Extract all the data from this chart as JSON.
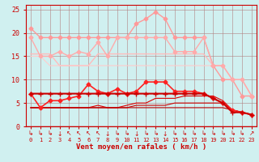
{
  "title": "",
  "xlabel": "Vent moyen/en rafales ( km/h )",
  "ylabel": "",
  "xlim": [
    -0.5,
    23.5
  ],
  "ylim": [
    0,
    26
  ],
  "yticks": [
    0,
    5,
    10,
    15,
    20,
    25
  ],
  "xticks": [
    0,
    1,
    2,
    3,
    4,
    5,
    6,
    7,
    8,
    9,
    10,
    11,
    12,
    13,
    14,
    15,
    16,
    17,
    18,
    19,
    20,
    21,
    22,
    23
  ],
  "bg_color": "#d0f0f0",
  "grid_color": "#b08080",
  "lines": [
    {
      "y": [
        21,
        19,
        19,
        19,
        19,
        19,
        19,
        19,
        19,
        19,
        19,
        22,
        23,
        24.5,
        23,
        19,
        19,
        19,
        19,
        13,
        10,
        10,
        6.5,
        6.5
      ],
      "color": "#ff9999",
      "marker": "D",
      "markersize": 2.5,
      "linewidth": 1.0,
      "zorder": 3
    },
    {
      "y": [
        19,
        15,
        15,
        16,
        15,
        16,
        15.5,
        18,
        15,
        19,
        19,
        19,
        19,
        19,
        19,
        16,
        16,
        16,
        19,
        13,
        13,
        10,
        10,
        6.5
      ],
      "color": "#ffaaaa",
      "marker": "D",
      "markersize": 2.5,
      "linewidth": 1.0,
      "zorder": 3
    },
    {
      "y": [
        15.5,
        15.5,
        15.5,
        13,
        13,
        13,
        13,
        15.5,
        15.5,
        15.5,
        15.5,
        15.5,
        15.5,
        15.5,
        15.5,
        15.5,
        15.5,
        15.5,
        15.5,
        13,
        13,
        10,
        10,
        6.5
      ],
      "color": "#ffbbbb",
      "marker": null,
      "markersize": 0,
      "linewidth": 1.0,
      "zorder": 2
    },
    {
      "y": [
        15,
        15,
        13,
        13,
        13,
        13,
        13,
        13,
        13,
        13,
        13,
        13,
        13,
        13,
        13,
        13,
        13,
        13,
        13,
        13,
        13,
        10,
        10,
        6.5
      ],
      "color": "#ffcccc",
      "marker": null,
      "markersize": 0,
      "linewidth": 0.8,
      "zorder": 2
    },
    {
      "y": [
        7,
        7,
        7,
        7,
        7,
        7,
        7,
        7,
        7,
        7,
        7,
        7,
        7,
        7,
        7,
        7,
        7,
        7,
        7,
        6,
        5,
        3,
        3,
        2.5
      ],
      "color": "#cc0000",
      "marker": "+",
      "markersize": 4,
      "linewidth": 1.5,
      "zorder": 5
    },
    {
      "y": [
        7,
        4,
        5.5,
        5.5,
        6,
        6.5,
        9,
        7.5,
        7,
        8,
        7,
        7.5,
        9.5,
        9.5,
        9.5,
        7.5,
        7.5,
        7.5,
        7,
        6,
        5,
        3.5,
        3,
        2.5
      ],
      "color": "#ff2222",
      "marker": "D",
      "markersize": 2.5,
      "linewidth": 1.2,
      "zorder": 4
    },
    {
      "y": [
        4,
        4,
        4,
        4,
        4,
        4,
        4,
        4.5,
        4,
        4,
        4.5,
        5,
        5,
        6,
        6,
        6,
        6.5,
        6.5,
        6.5,
        6.5,
        5.5,
        3.5,
        3,
        2.5
      ],
      "color": "#dd0000",
      "marker": null,
      "markersize": 0,
      "linewidth": 0.8,
      "zorder": 3
    },
    {
      "y": [
        4,
        4,
        4,
        4,
        4,
        4,
        4,
        4,
        4,
        4,
        4,
        4.5,
        4.5,
        4.5,
        4.5,
        5,
        5,
        5,
        5,
        5,
        5,
        3.5,
        3,
        2.5
      ],
      "color": "#cc0000",
      "marker": null,
      "markersize": 0,
      "linewidth": 0.8,
      "zorder": 3
    },
    {
      "y": [
        4,
        4,
        4,
        4,
        4,
        4,
        4,
        4,
        4,
        4,
        4,
        4,
        4,
        4,
        4,
        4,
        4,
        4,
        4,
        4,
        4,
        3.5,
        3,
        2.5
      ],
      "color": "#bb0000",
      "marker": null,
      "markersize": 0,
      "linewidth": 0.8,
      "zorder": 3
    }
  ],
  "arrow_color": "#cc0000",
  "arrow_symbols": [
    "↳",
    "↳",
    "↳",
    "↓",
    "↖",
    "↖",
    "↖",
    "↖",
    "↓",
    "↳",
    "↳",
    "↓",
    "↳",
    "↳",
    "↓",
    "↳",
    "↳",
    "↳",
    "↳",
    "↳",
    "↳",
    "↳",
    "↳",
    "↗"
  ]
}
